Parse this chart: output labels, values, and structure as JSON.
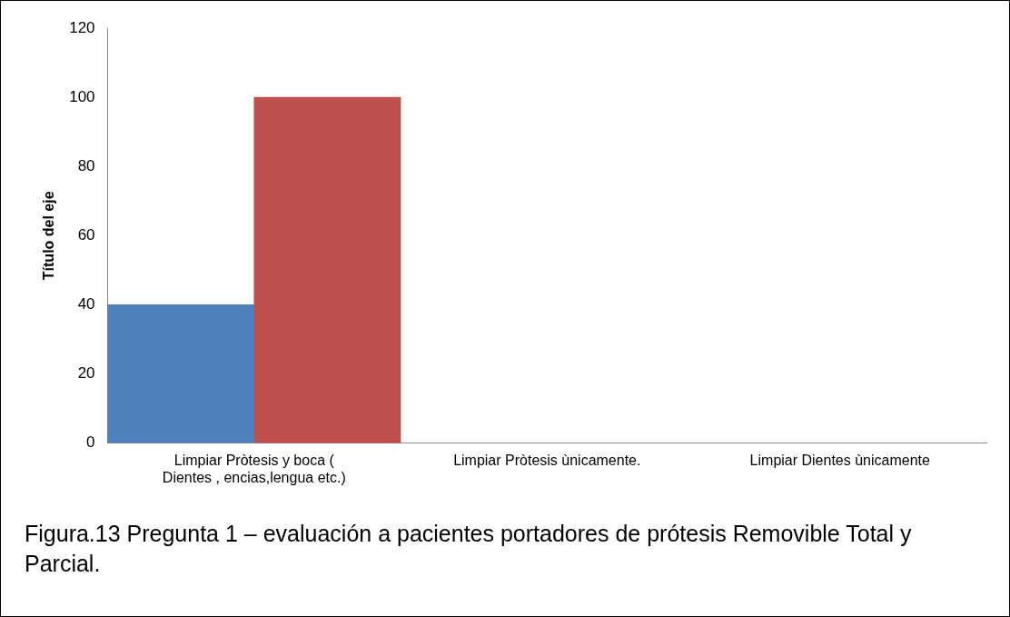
{
  "chart_data": {
    "type": "bar",
    "ylabel": "Título del eje",
    "categories": [
      "Limpiar Pròtesis y boca ( Dientes , encias,lengua etc.)",
      "Limpiar Pròtesis ùnicamente.",
      "Limpiar Dientes ùnicamente"
    ],
    "series": [
      {
        "color": "#4f81bd",
        "values": [
          40,
          null,
          null
        ]
      },
      {
        "color": "#c0504d",
        "values": [
          100,
          null,
          null
        ]
      }
    ],
    "ylim": [
      0,
      120
    ],
    "yticks": [
      0,
      20,
      40,
      60,
      80,
      100,
      120
    ],
    "grid": false,
    "legend": false,
    "annotations": [
      "Figura.13 Pregunta 1 – evaluación a pacientes portadores de prótesis Removible Total y Parcial."
    ]
  }
}
